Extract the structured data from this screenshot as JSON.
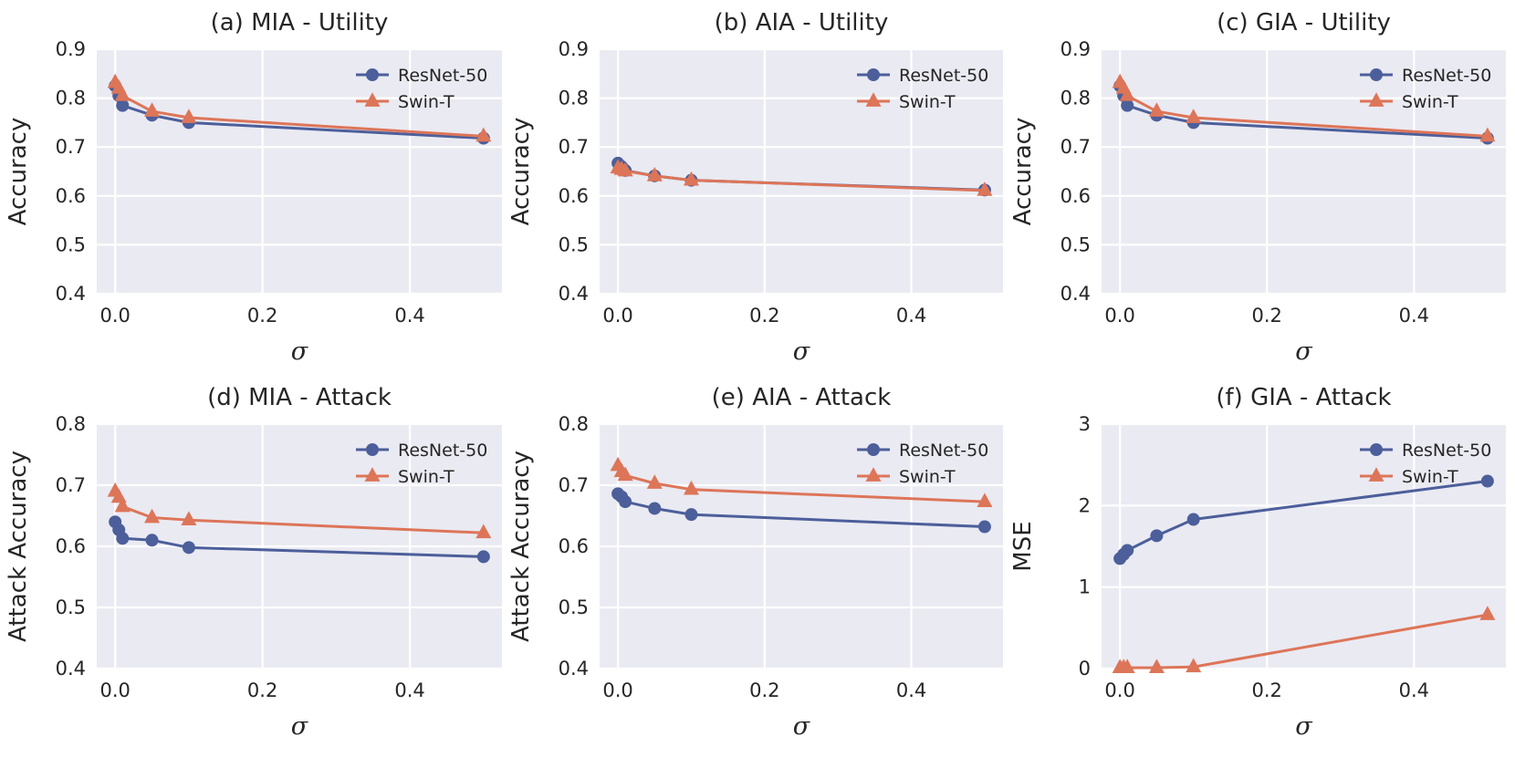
{
  "figure": {
    "xlabel_symbol": "σ",
    "legend_position": "top-right",
    "series_colors": {
      "ResNet-50": "#4c5f9b",
      "Swin-T": "#dd7558"
    },
    "series_markers": {
      "ResNet-50": "circle",
      "Swin-T": "triangle"
    }
  },
  "chart_data": [
    {
      "type": "line",
      "title": "(a) MIA - Utility",
      "xlabel": "σ",
      "ylabel": "Accuracy",
      "xlim": [
        -0.025,
        0.525
      ],
      "ylim": [
        0.4,
        0.9
      ],
      "xticks": [
        0.0,
        0.2,
        0.4
      ],
      "xtick_labels": [
        "0.0",
        "0.2",
        "0.4"
      ],
      "yticks": [
        0.4,
        0.5,
        0.6,
        0.7,
        0.8,
        0.9
      ],
      "ytick_labels": [
        "0.4",
        "0.5",
        "0.6",
        "0.7",
        "0.8",
        "0.9"
      ],
      "x": [
        0.0,
        0.005,
        0.01,
        0.05,
        0.1,
        0.5
      ],
      "series": [
        {
          "name": "ResNet-50",
          "values": [
            0.825,
            0.805,
            0.785,
            0.765,
            0.75,
            0.718
          ]
        },
        {
          "name": "Swin-T",
          "values": [
            0.832,
            0.82,
            0.805,
            0.773,
            0.76,
            0.722
          ]
        }
      ]
    },
    {
      "type": "line",
      "title": "(b) AIA - Utility",
      "xlabel": "σ",
      "ylabel": "Accuracy",
      "xlim": [
        -0.025,
        0.525
      ],
      "ylim": [
        0.4,
        0.9
      ],
      "xticks": [
        0.0,
        0.2,
        0.4
      ],
      "xtick_labels": [
        "0.0",
        "0.2",
        "0.4"
      ],
      "yticks": [
        0.4,
        0.5,
        0.6,
        0.7,
        0.8,
        0.9
      ],
      "ytick_labels": [
        "0.4",
        "0.5",
        "0.6",
        "0.7",
        "0.8",
        "0.9"
      ],
      "x": [
        0.0,
        0.005,
        0.01,
        0.05,
        0.1,
        0.5
      ],
      "series": [
        {
          "name": "ResNet-50",
          "values": [
            0.667,
            0.66,
            0.652,
            0.641,
            0.632,
            0.612
          ]
        },
        {
          "name": "Swin-T",
          "values": [
            0.657,
            0.654,
            0.651,
            0.641,
            0.632,
            0.611
          ]
        }
      ]
    },
    {
      "type": "line",
      "title": "(c) GIA - Utility",
      "xlabel": "σ",
      "ylabel": "Accuracy",
      "xlim": [
        -0.025,
        0.525
      ],
      "ylim": [
        0.4,
        0.9
      ],
      "xticks": [
        0.0,
        0.2,
        0.4
      ],
      "xtick_labels": [
        "0.0",
        "0.2",
        "0.4"
      ],
      "yticks": [
        0.4,
        0.5,
        0.6,
        0.7,
        0.8,
        0.9
      ],
      "ytick_labels": [
        "0.4",
        "0.5",
        "0.6",
        "0.7",
        "0.8",
        "0.9"
      ],
      "x": [
        0.0,
        0.005,
        0.01,
        0.05,
        0.1,
        0.5
      ],
      "series": [
        {
          "name": "ResNet-50",
          "values": [
            0.825,
            0.805,
            0.785,
            0.765,
            0.75,
            0.718
          ]
        },
        {
          "name": "Swin-T",
          "values": [
            0.832,
            0.82,
            0.805,
            0.773,
            0.76,
            0.722
          ]
        }
      ]
    },
    {
      "type": "line",
      "title": "(d) MIA - Attack",
      "xlabel": "σ",
      "ylabel": "Attack Accuracy",
      "xlim": [
        -0.025,
        0.525
      ],
      "ylim": [
        0.4,
        0.8
      ],
      "xticks": [
        0.0,
        0.2,
        0.4
      ],
      "xtick_labels": [
        "0.0",
        "0.2",
        "0.4"
      ],
      "yticks": [
        0.4,
        0.5,
        0.6,
        0.7,
        0.8
      ],
      "ytick_labels": [
        "0.4",
        "0.5",
        "0.6",
        "0.7",
        "0.8"
      ],
      "x": [
        0.0,
        0.005,
        0.01,
        0.05,
        0.1,
        0.5
      ],
      "series": [
        {
          "name": "ResNet-50",
          "values": [
            0.64,
            0.627,
            0.613,
            0.61,
            0.598,
            0.583
          ]
        },
        {
          "name": "Swin-T",
          "values": [
            0.69,
            0.68,
            0.665,
            0.647,
            0.643,
            0.622
          ]
        }
      ]
    },
    {
      "type": "line",
      "title": "(e) AIA - Attack",
      "xlabel": "σ",
      "ylabel": "Attack Accuracy",
      "xlim": [
        -0.025,
        0.525
      ],
      "ylim": [
        0.4,
        0.8
      ],
      "xticks": [
        0.0,
        0.2,
        0.4
      ],
      "xtick_labels": [
        "0.0",
        "0.2",
        "0.4"
      ],
      "yticks": [
        0.4,
        0.5,
        0.6,
        0.7,
        0.8
      ],
      "ytick_labels": [
        "0.4",
        "0.5",
        "0.6",
        "0.7",
        "0.8"
      ],
      "x": [
        0.0,
        0.005,
        0.01,
        0.05,
        0.1,
        0.5
      ],
      "series": [
        {
          "name": "ResNet-50",
          "values": [
            0.686,
            0.681,
            0.673,
            0.662,
            0.652,
            0.632
          ]
        },
        {
          "name": "Swin-T",
          "values": [
            0.732,
            0.722,
            0.716,
            0.703,
            0.693,
            0.673
          ]
        }
      ]
    },
    {
      "type": "line",
      "title": "(f) GIA - Attack",
      "xlabel": "σ",
      "ylabel": "MSE",
      "xlim": [
        -0.025,
        0.525
      ],
      "ylim": [
        0,
        3
      ],
      "xticks": [
        0.0,
        0.2,
        0.4
      ],
      "xtick_labels": [
        "0.0",
        "0.2",
        "0.4"
      ],
      "yticks": [
        0,
        1,
        2,
        3
      ],
      "ytick_labels": [
        "0",
        "1",
        "2",
        "3"
      ],
      "x": [
        0.0,
        0.005,
        0.01,
        0.05,
        0.1,
        0.5
      ],
      "series": [
        {
          "name": "ResNet-50",
          "values": [
            1.35,
            1.4,
            1.45,
            1.63,
            1.83,
            2.3
          ]
        },
        {
          "name": "Swin-T",
          "values": [
            0.01,
            0.01,
            0.01,
            0.01,
            0.02,
            0.66
          ]
        }
      ]
    }
  ]
}
